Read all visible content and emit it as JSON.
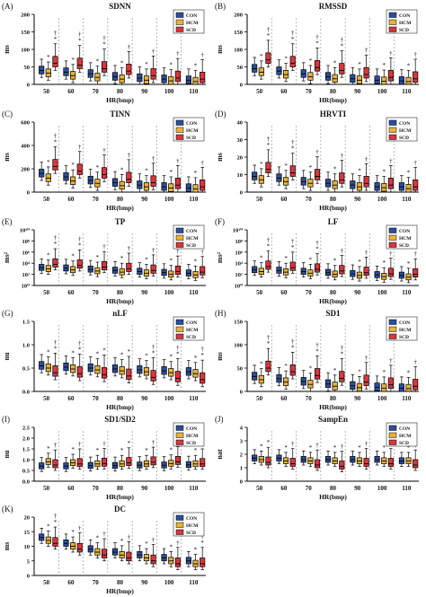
{
  "figure": {
    "legend_labels": [
      "CON",
      "HCM",
      "SCD"
    ],
    "colors": {
      "CON": "#2d4f9a",
      "HCM": "#e8b33a",
      "SCD": "#d9363e"
    },
    "x_categories": [
      "50",
      "60",
      "70",
      "80",
      "90",
      "100",
      "110"
    ],
    "xlabel": "HR(bmp)"
  },
  "chart_data": [
    {
      "type": "box",
      "panel": "(A)",
      "title": "SDNN",
      "ylabel": "ms",
      "xlabel": "HR(bmp)",
      "ylim": [
        0,
        200
      ],
      "yticks": [
        "0",
        "50",
        "100",
        "150",
        "200"
      ],
      "categories": [
        "50",
        "60",
        "70",
        "80",
        "90",
        "100",
        "110"
      ],
      "legend": "top-right",
      "series": [
        {
          "name": "CON",
          "medians": [
            40,
            35,
            30,
            22,
            18,
            15,
            12
          ]
        },
        {
          "name": "HCM",
          "medians": [
            32,
            25,
            20,
            15,
            12,
            10,
            8
          ]
        },
        {
          "name": "SCD",
          "medians": [
            60,
            55,
            45,
            38,
            25,
            18,
            15
          ]
        }
      ],
      "annotations": [
        [
          "*",
          "†*"
        ],
        [
          "*",
          "†*"
        ],
        [
          "*",
          "†*"
        ],
        [
          "*",
          "†"
        ],
        [
          "*",
          "†"
        ],
        [
          "*",
          "†"
        ],
        [
          "*",
          "†"
        ]
      ]
    },
    {
      "type": "box",
      "panel": "(B)",
      "title": "RMSSD",
      "ylabel": "ms",
      "xlabel": "HR(bmp)",
      "ylim": [
        0,
        200
      ],
      "yticks": [
        "0",
        "50",
        "100",
        "150",
        "200"
      ],
      "categories": [
        "50",
        "60",
        "70",
        "80",
        "90",
        "100",
        "110"
      ],
      "legend": "top-right",
      "series": [
        {
          "name": "CON",
          "medians": [
            45,
            38,
            30,
            22,
            16,
            12,
            10
          ]
        },
        {
          "name": "HCM",
          "medians": [
            35,
            28,
            22,
            16,
            12,
            9,
            8
          ]
        },
        {
          "name": "SCD",
          "medians": [
            70,
            60,
            48,
            40,
            28,
            20,
            16
          ]
        }
      ],
      "annotations": [
        [
          "*",
          "†*"
        ],
        [
          "*",
          "†*"
        ],
        [
          "*",
          "†*"
        ],
        [
          "*",
          "†*"
        ],
        [
          "*",
          "†"
        ],
        [
          "*",
          "†"
        ],
        [
          "*",
          "†"
        ]
      ]
    },
    {
      "type": "box",
      "panel": "(C)",
      "title": "TINN",
      "ylabel": "ms",
      "xlabel": "HR(bmp)",
      "ylim": [
        0,
        600
      ],
      "yticks": [
        "0",
        "200",
        "400",
        "600"
      ],
      "categories": [
        "50",
        "60",
        "70",
        "80",
        "90",
        "100",
        "110"
      ],
      "legend": "top-right",
      "series": [
        {
          "name": "CON",
          "medians": [
            160,
            130,
            100,
            80,
            60,
            45,
            35
          ]
        },
        {
          "name": "HCM",
          "medians": [
            120,
            95,
            75,
            55,
            45,
            35,
            28
          ]
        },
        {
          "name": "SCD",
          "medians": [
            220,
            180,
            150,
            110,
            80,
            60,
            45
          ]
        }
      ],
      "annotations": [
        [
          "*",
          "†*"
        ],
        [
          "*",
          "†"
        ],
        [
          "*",
          "†"
        ],
        [
          "*",
          "†"
        ],
        [
          "*",
          "†"
        ],
        [
          "*",
          "†"
        ],
        [
          "*",
          "†"
        ]
      ]
    },
    {
      "type": "box",
      "panel": "(D)",
      "title": "HRVTI",
      "ylabel": "ms",
      "xlabel": "HR(bmp)",
      "ylim": [
        0,
        40
      ],
      "yticks": [
        "0",
        "10",
        "20",
        "30",
        "40"
      ],
      "categories": [
        "50",
        "60",
        "70",
        "80",
        "90",
        "100",
        "110"
      ],
      "legend": "top-right",
      "series": [
        {
          "name": "CON",
          "medians": [
            9,
            8,
            6,
            5,
            4,
            3,
            3
          ]
        },
        {
          "name": "HCM",
          "medians": [
            7,
            6,
            5,
            4,
            3,
            2.5,
            2
          ]
        },
        {
          "name": "SCD",
          "medians": [
            13,
            11,
            9,
            7,
            5,
            4,
            3
          ]
        }
      ],
      "annotations": [
        [
          "*",
          "†*"
        ],
        [
          "*",
          "†*"
        ],
        [
          "*",
          "†"
        ],
        [
          "*",
          "†"
        ],
        [
          "*",
          "†"
        ],
        [
          "*",
          "†"
        ],
        [
          "*",
          "†"
        ]
      ]
    },
    {
      "type": "box",
      "panel": "(E)",
      "title": "TP",
      "ylabel": "ms²",
      "log_scale": true,
      "xlabel": "HR(bmp)",
      "ylim": [
        0,
        10
      ],
      "yticks": [
        "10⁰",
        "10²",
        "10⁴",
        "10⁶",
        "10⁸",
        "10¹⁰"
      ],
      "categories": [
        "50",
        "60",
        "70",
        "80",
        "90",
        "100",
        "110"
      ],
      "legend": "top-right",
      "series": [
        {
          "name": "CON",
          "medians": [
            3.2,
            3.1,
            2.9,
            2.7,
            2.5,
            2.3,
            2.2
          ]
        },
        {
          "name": "HCM",
          "medians": [
            3.0,
            2.8,
            2.6,
            2.4,
            2.2,
            2.0,
            1.9
          ]
        },
        {
          "name": "SCD",
          "medians": [
            3.8,
            3.6,
            3.3,
            3.0,
            2.7,
            2.5,
            2.4
          ]
        }
      ],
      "annotations": [
        [
          "*",
          "†*"
        ],
        [
          "*",
          "†*"
        ],
        [
          "*",
          "†"
        ],
        [
          "*",
          "†"
        ],
        [
          "*",
          "†"
        ],
        [
          "*",
          "†"
        ],
        [
          "*",
          "†"
        ]
      ]
    },
    {
      "type": "box",
      "panel": "(F)",
      "title": "LF",
      "ylabel": "ms²",
      "log_scale": true,
      "xlabel": "HR(bmp)",
      "ylim": [
        0,
        10
      ],
      "yticks": [
        "10⁰",
        "10²",
        "10⁴",
        "10⁶",
        "10⁸",
        "10¹⁰"
      ],
      "categories": [
        "50",
        "60",
        "70",
        "80",
        "90",
        "100",
        "110"
      ],
      "legend": "top-right",
      "series": [
        {
          "name": "CON",
          "medians": [
            2.8,
            2.7,
            2.5,
            2.3,
            2.1,
            1.9,
            1.8
          ]
        },
        {
          "name": "HCM",
          "medians": [
            2.5,
            2.4,
            2.2,
            2.0,
            1.8,
            1.6,
            1.5
          ]
        },
        {
          "name": "SCD",
          "medians": [
            3.4,
            3.2,
            2.9,
            2.6,
            2.3,
            2.1,
            2.0
          ]
        }
      ],
      "annotations": [
        [
          "*",
          "†*"
        ],
        [
          "*",
          "†*"
        ],
        [
          "*",
          "†*"
        ],
        [
          "*",
          "†"
        ],
        [
          "*",
          "†"
        ],
        [
          "*",
          "†"
        ],
        [
          "*",
          "†"
        ]
      ]
    },
    {
      "type": "box",
      "panel": "(G)",
      "title": "nLF",
      "ylabel": "nu",
      "xlabel": "HR(bmp)",
      "ylim": [
        0,
        1.5
      ],
      "yticks": [
        "0.0",
        "0.5",
        "1.0",
        "1.5"
      ],
      "categories": [
        "50",
        "60",
        "70",
        "80",
        "90",
        "100",
        "110"
      ],
      "legend": "top-right",
      "series": [
        {
          "name": "CON",
          "medians": [
            0.55,
            0.52,
            0.5,
            0.48,
            0.46,
            0.44,
            0.42
          ]
        },
        {
          "name": "HCM",
          "medians": [
            0.5,
            0.48,
            0.46,
            0.44,
            0.42,
            0.4,
            0.38
          ]
        },
        {
          "name": "SCD",
          "medians": [
            0.4,
            0.38,
            0.36,
            0.33,
            0.3,
            0.28,
            0.25
          ]
        }
      ],
      "annotations": [
        [
          "*",
          "†*"
        ],
        [
          "*",
          "†*"
        ],
        [
          "*",
          "*"
        ],
        [
          "*",
          "*"
        ],
        [
          "*",
          "†*"
        ],
        [
          "*",
          "†*"
        ],
        [
          "*",
          "†*"
        ]
      ]
    },
    {
      "type": "box",
      "panel": "(H)",
      "title": "SD1",
      "ylabel": "ms",
      "xlabel": "HR(bmp)",
      "ylim": [
        0,
        150
      ],
      "yticks": [
        "0",
        "50",
        "100",
        "150"
      ],
      "categories": [
        "50",
        "60",
        "70",
        "80",
        "90",
        "100",
        "110"
      ],
      "legend": "top-right",
      "series": [
        {
          "name": "CON",
          "medians": [
            32,
            27,
            21,
            16,
            12,
            9,
            7
          ]
        },
        {
          "name": "HCM",
          "medians": [
            25,
            20,
            15,
            11,
            8,
            7,
            6
          ]
        },
        {
          "name": "SCD",
          "medians": [
            50,
            42,
            34,
            28,
            20,
            14,
            11
          ]
        }
      ],
      "annotations": [
        [
          "*",
          "†*"
        ],
        [
          "*",
          "†*"
        ],
        [
          "*",
          "†*"
        ],
        [
          "*",
          "†*"
        ],
        [
          "*",
          "†"
        ],
        [
          "*",
          "†"
        ],
        [
          "*",
          "†"
        ]
      ]
    },
    {
      "type": "box",
      "panel": "(I)",
      "title": "SD1/SD2",
      "ylabel": "nu",
      "xlabel": "HR(bmp)",
      "ylim": [
        0,
        2.5
      ],
      "yticks": [
        "0.0",
        "0.5",
        "1.0",
        "1.5",
        "2.0",
        "2.5"
      ],
      "categories": [
        "50",
        "60",
        "70",
        "80",
        "90",
        "100",
        "110"
      ],
      "legend": "top-right",
      "series": [
        {
          "name": "CON",
          "medians": [
            0.7,
            0.7,
            0.72,
            0.72,
            0.74,
            0.74,
            0.76
          ]
        },
        {
          "name": "HCM",
          "medians": [
            0.9,
            0.85,
            0.8,
            0.8,
            0.8,
            0.82,
            0.8
          ]
        },
        {
          "name": "SCD",
          "medians": [
            0.75,
            0.8,
            0.82,
            0.85,
            0.88,
            0.9,
            0.8
          ]
        }
      ],
      "annotations": [
        [
          "*",
          "†"
        ],
        [
          "*",
          "†"
        ],
        [
          "*",
          "†"
        ],
        [
          "*",
          "*"
        ],
        [
          "*",
          "†"
        ],
        [
          "*",
          "†"
        ],
        [
          "*",
          "†"
        ]
      ]
    },
    {
      "type": "box",
      "panel": "(J)",
      "title": "SampEn",
      "ylabel": "nat",
      "xlabel": "HR(bmp)",
      "ylim": [
        0,
        4
      ],
      "yticks": [
        "0",
        "1",
        "2",
        "3",
        "4"
      ],
      "categories": [
        "50",
        "60",
        "70",
        "80",
        "90",
        "100",
        "110"
      ],
      "legend": "top-right",
      "series": [
        {
          "name": "CON",
          "medians": [
            1.7,
            1.7,
            1.6,
            1.6,
            1.6,
            1.6,
            1.5
          ]
        },
        {
          "name": "HCM",
          "medians": [
            1.6,
            1.5,
            1.5,
            1.5,
            1.5,
            1.5,
            1.5
          ]
        },
        {
          "name": "SCD",
          "medians": [
            1.4,
            1.3,
            1.2,
            1.1,
            1.3,
            1.3,
            1.2
          ]
        }
      ],
      "annotations": [
        [
          "*",
          "*"
        ],
        [
          "*",
          "†"
        ],
        [
          "*",
          "†"
        ],
        [
          "*",
          "†"
        ],
        [
          "*",
          "†"
        ],
        [
          "*",
          "†"
        ],
        [
          "*",
          "†"
        ]
      ]
    },
    {
      "type": "box",
      "panel": "(K)",
      "title": "DC",
      "ylabel": "ms",
      "xlabel": "HR(bmp)",
      "ylim": [
        0,
        20
      ],
      "yticks": [
        "0",
        "5",
        "10",
        "15",
        "20"
      ],
      "categories": [
        "50",
        "60",
        "70",
        "80",
        "90",
        "100",
        "110"
      ],
      "legend": "top-right",
      "series": [
        {
          "name": "CON",
          "medians": [
            13,
            11,
            9,
            8,
            7,
            6,
            5
          ]
        },
        {
          "name": "HCM",
          "medians": [
            12,
            10,
            8,
            7,
            6,
            5,
            4
          ]
        },
        {
          "name": "SCD",
          "medians": [
            11,
            9,
            7,
            6,
            5,
            4,
            4
          ]
        }
      ],
      "annotations": [
        [
          "*",
          "†*"
        ],
        [
          "*",
          "†"
        ],
        [
          "*",
          "†"
        ],
        [
          "*",
          "†"
        ],
        [
          "*",
          "†"
        ],
        [
          "*",
          "†"
        ],
        [
          "*",
          "†*"
        ]
      ]
    }
  ]
}
